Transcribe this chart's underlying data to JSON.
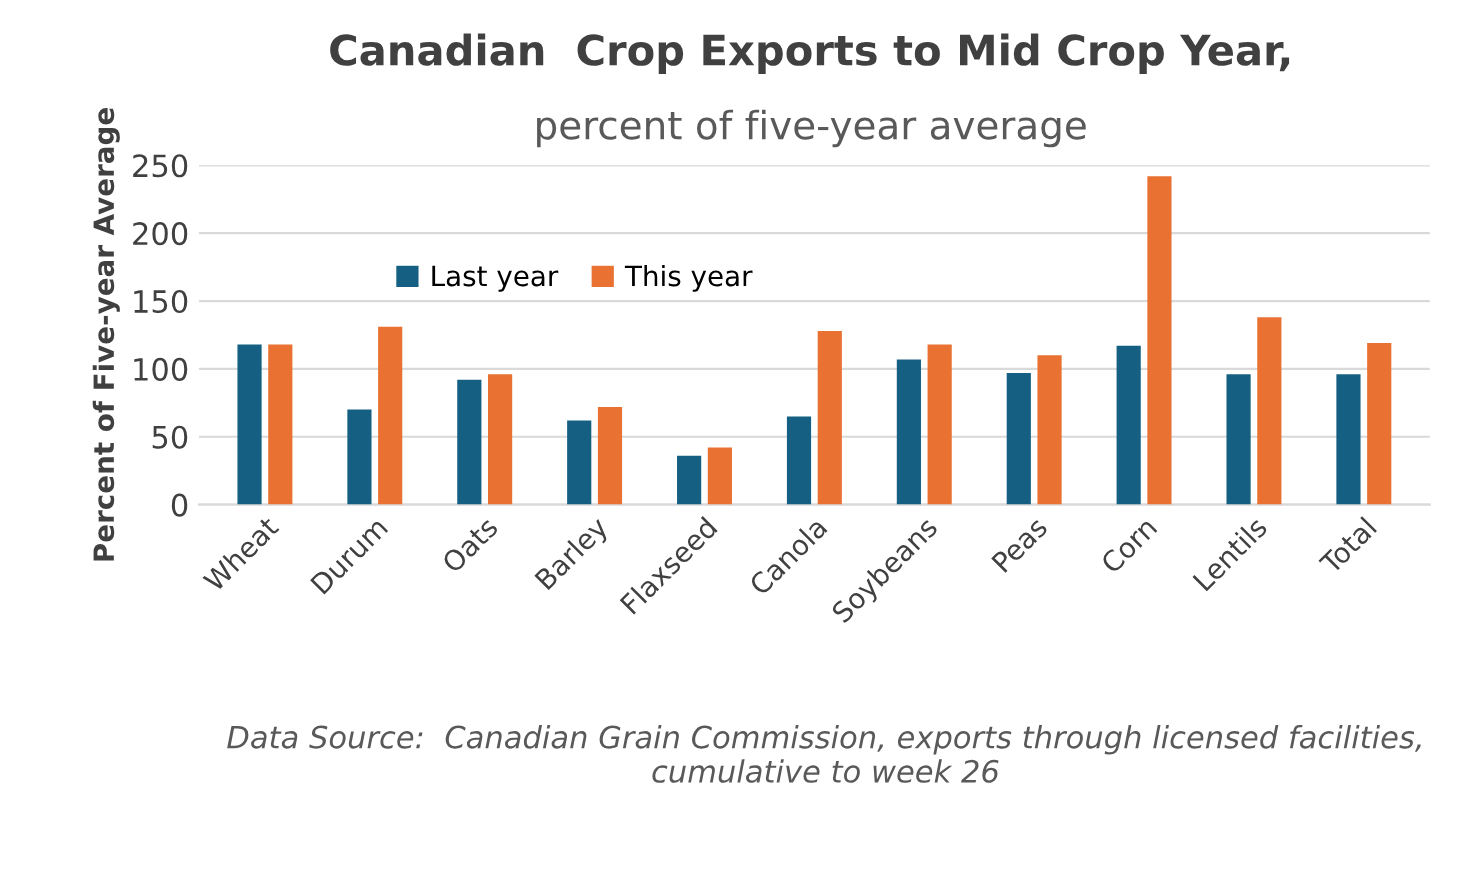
{
  "chart_data": {
    "type": "bar",
    "title": "Canadian  Crop Exports to Mid Crop Year,",
    "subtitle": "percent of five-year average",
    "ylabel": "Percent of Five-year Average",
    "categories": [
      "Wheat",
      "Durum",
      "Oats",
      "Barley",
      "Flaxseed",
      "Canola",
      "Soybeans",
      "Peas",
      "Corn",
      "Lentils",
      "Total"
    ],
    "series": [
      {
        "name": "Last year",
        "color": "#156082",
        "values": [
          118,
          70,
          92,
          62,
          36,
          65,
          107,
          97,
          117,
          96,
          96
        ]
      },
      {
        "name": "This year",
        "color": "#e97132",
        "values": [
          118,
          131,
          96,
          72,
          42,
          128,
          118,
          110,
          242,
          138,
          119
        ]
      }
    ],
    "ylim": [
      0,
      250
    ],
    "yticks": [
      0,
      50,
      100,
      150,
      200,
      250
    ],
    "grid": "y",
    "legend": "top left",
    "annotations": [
      "Data Source:  Canadian Grain Commission, exports through licensed facilities, cumulative to week 26"
    ]
  }
}
